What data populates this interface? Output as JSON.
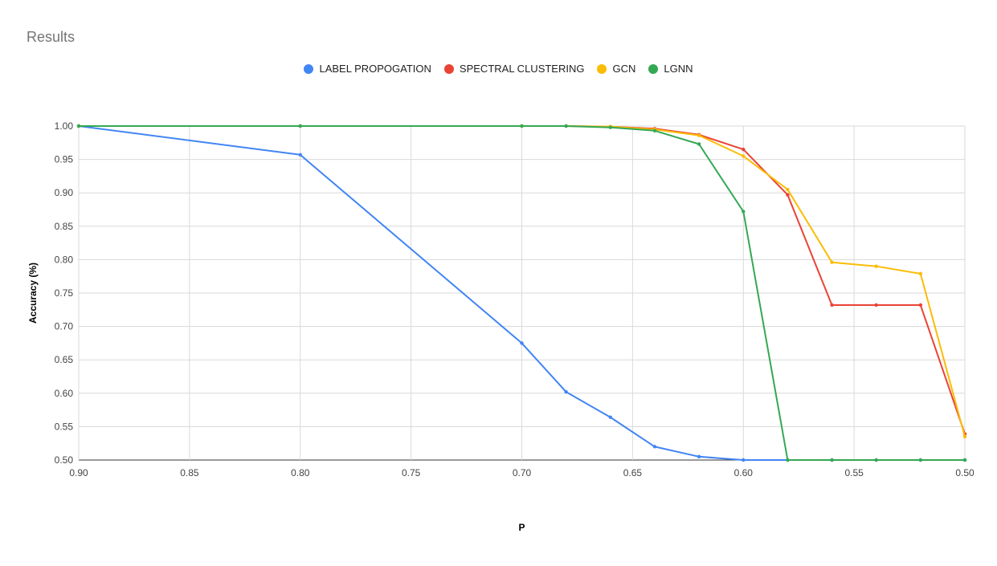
{
  "chart_data": {
    "type": "line",
    "title": "Results",
    "xlabel": "P",
    "ylabel": "Accuracy (%)",
    "xlim": [
      0.9,
      0.5
    ],
    "ylim": [
      0.5,
      1.0
    ],
    "x_reversed": true,
    "xticks": [
      0.9,
      0.85,
      0.8,
      0.75,
      0.7,
      0.65,
      0.6,
      0.55,
      0.5
    ],
    "yticks": [
      0.5,
      0.55,
      0.6,
      0.65,
      0.7,
      0.75,
      0.8,
      0.85,
      0.9,
      0.95,
      1.0
    ],
    "grid": true,
    "legend_position": "top",
    "series": [
      {
        "name": "LABEL PROPOGATION",
        "color": "#4285F4",
        "x": [
          0.9,
          0.8,
          0.7,
          0.68,
          0.66,
          0.64,
          0.62,
          0.6,
          0.58,
          0.56,
          0.54,
          0.52,
          0.5
        ],
        "y": [
          1.0,
          0.957,
          0.675,
          0.602,
          0.564,
          0.52,
          0.505,
          0.5,
          0.5,
          0.5,
          0.5,
          0.5,
          0.5
        ]
      },
      {
        "name": "SPECTRAL CLUSTERING",
        "color": "#EA4335",
        "x": [
          0.9,
          0.8,
          0.7,
          0.68,
          0.66,
          0.64,
          0.62,
          0.6,
          0.58,
          0.56,
          0.54,
          0.52,
          0.5
        ],
        "y": [
          1.0,
          1.0,
          1.0,
          1.0,
          0.999,
          0.996,
          0.987,
          0.965,
          0.897,
          0.732,
          0.732,
          0.732,
          0.539
        ]
      },
      {
        "name": "GCN",
        "color": "#FBBC04",
        "x": [
          0.9,
          0.8,
          0.7,
          0.68,
          0.66,
          0.64,
          0.62,
          0.6,
          0.58,
          0.56,
          0.54,
          0.52,
          0.5
        ],
        "y": [
          1.0,
          1.0,
          1.0,
          1.0,
          0.999,
          0.995,
          0.986,
          0.955,
          0.905,
          0.796,
          0.79,
          0.779,
          0.535
        ]
      },
      {
        "name": "LGNN",
        "color": "#34A853",
        "x": [
          0.9,
          0.8,
          0.7,
          0.68,
          0.66,
          0.64,
          0.62,
          0.6,
          0.58,
          0.56,
          0.54,
          0.52,
          0.5
        ],
        "y": [
          1.0,
          1.0,
          1.0,
          1.0,
          0.998,
          0.993,
          0.973,
          0.872,
          0.5,
          0.5,
          0.5,
          0.5,
          0.5
        ]
      }
    ]
  }
}
